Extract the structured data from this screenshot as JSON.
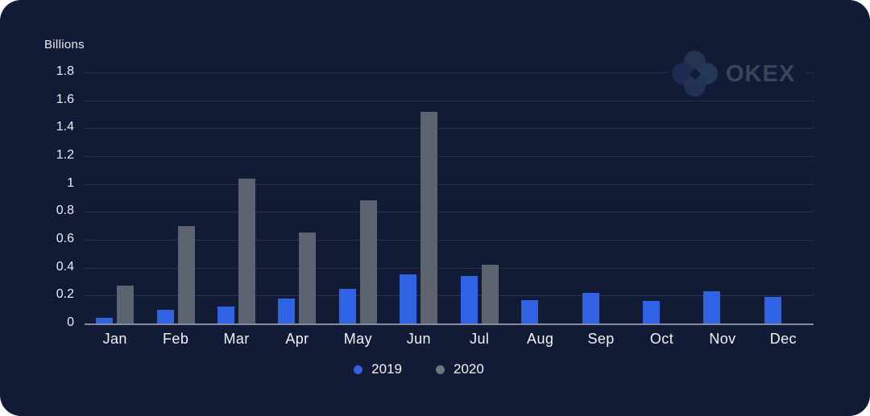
{
  "page": {
    "card_background": "#121b36",
    "gridline_color": "#2b3452",
    "zero_line_color": "#868c9e",
    "text_color": "#f1f3f8"
  },
  "logo": {
    "text": "OKEX",
    "text_color": "#3d4459",
    "circle_colors": {
      "top": "#273450",
      "left": "#1d2b52",
      "right": "#253757",
      "bottom": "#213254"
    }
  },
  "chart_data": {
    "type": "bar",
    "title": "",
    "ylabel": "Billions",
    "xlabel": "",
    "categories": [
      "Jan",
      "Feb",
      "Mar",
      "Apr",
      "May",
      "Jun",
      "Jul",
      "Aug",
      "Sep",
      "Oct",
      "Nov",
      "Dec"
    ],
    "series": [
      {
        "name": "2019",
        "color": "#2f63e3",
        "values": [
          0.04,
          0.1,
          0.12,
          0.18,
          0.25,
          0.35,
          0.34,
          0.17,
          0.22,
          0.16,
          0.23,
          0.19
        ]
      },
      {
        "name": "2020",
        "color": "#5e6372",
        "values": [
          0.27,
          0.7,
          1.04,
          0.65,
          0.88,
          1.52,
          0.42,
          null,
          null,
          null,
          null,
          null
        ]
      }
    ],
    "y_ticks": [
      1.8,
      1.6,
      1.4,
      1.2,
      1,
      0.8,
      0.6,
      0.4,
      0.2,
      0
    ],
    "ylim": [
      0,
      1.8
    ],
    "grid": true,
    "legend_position": "bottom"
  },
  "legend": {
    "items": [
      {
        "label": "2019",
        "color": "#2f63e3"
      },
      {
        "label": "2020",
        "color": "#6f7480"
      }
    ]
  }
}
